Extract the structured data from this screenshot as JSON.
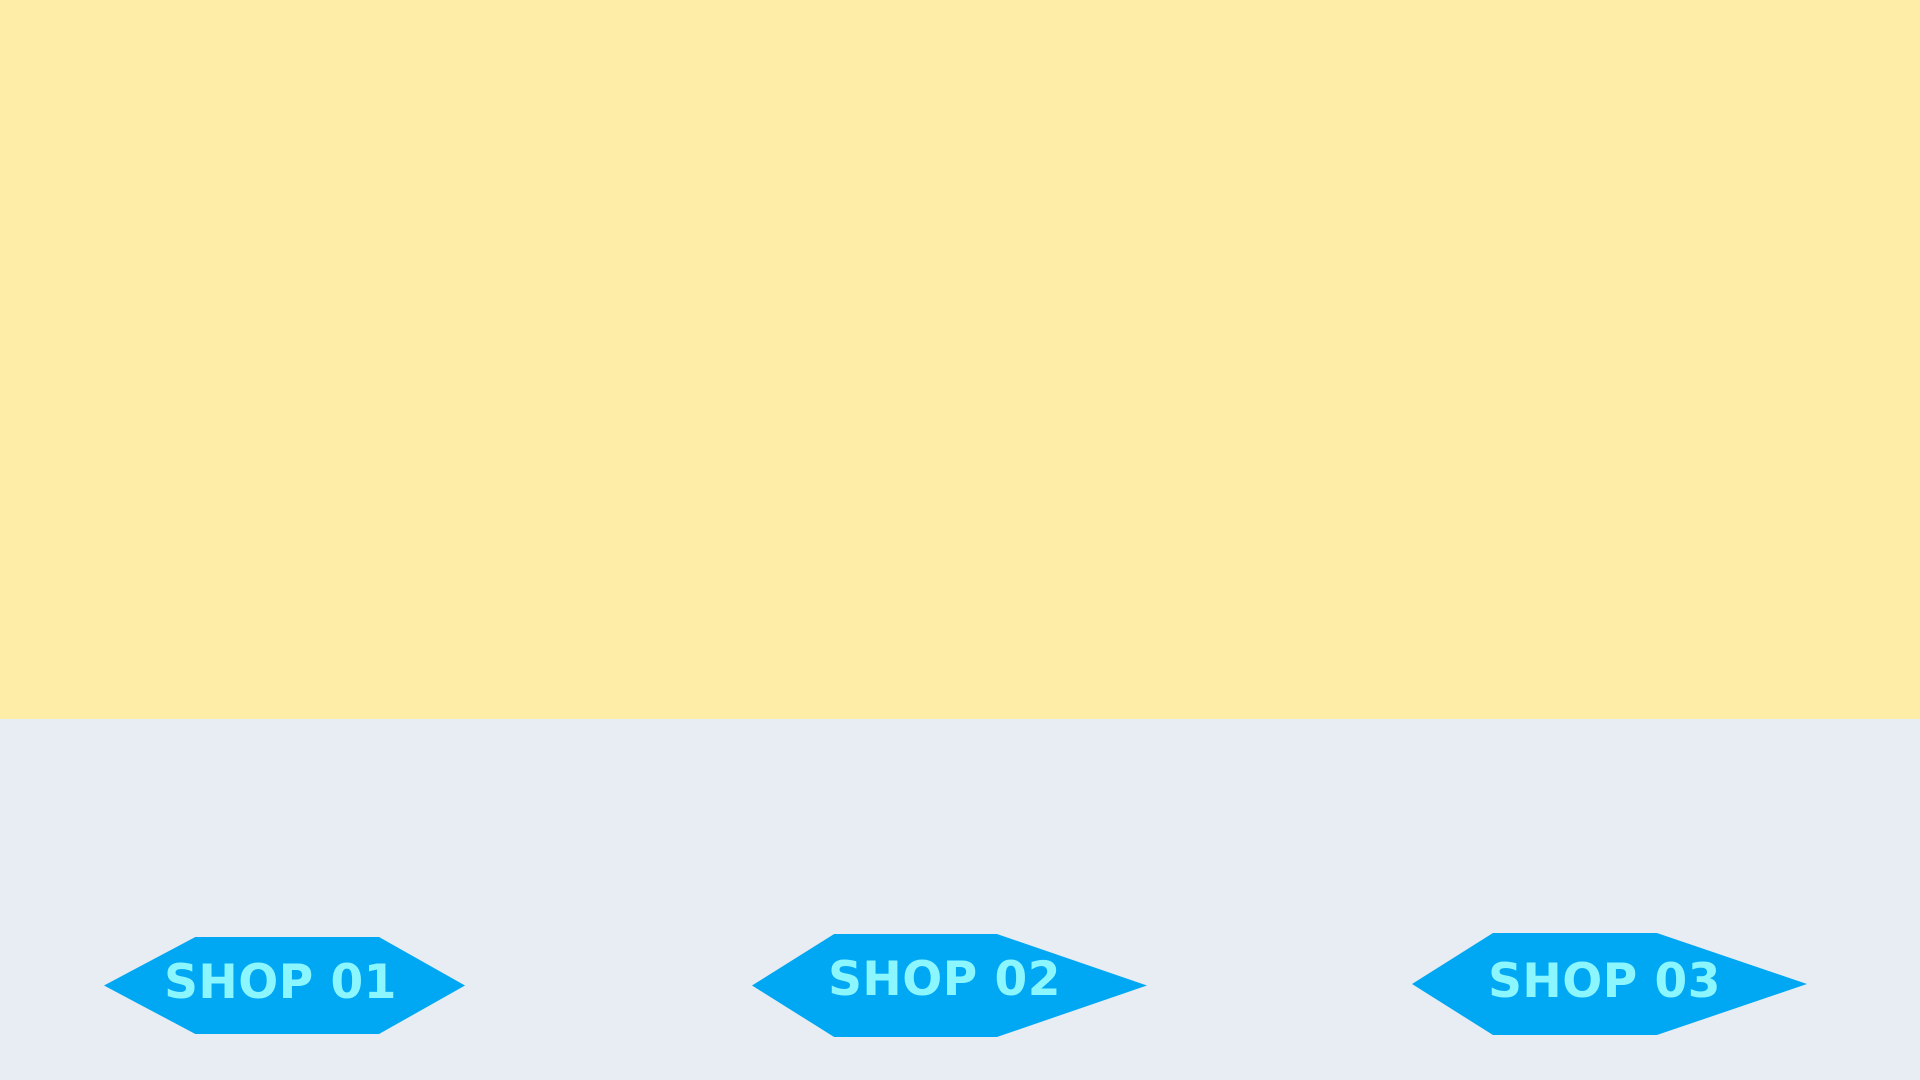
{
  "colors": {
    "top_panel": "#FEEDA6",
    "bottom_panel": "#E7EDF2",
    "button_fill": "#00A8F3",
    "button_text": "#8CF6FF"
  },
  "shops": [
    {
      "label": "SHOP 01"
    },
    {
      "label": "SHOP 02"
    },
    {
      "label": "SHOP 03"
    }
  ]
}
